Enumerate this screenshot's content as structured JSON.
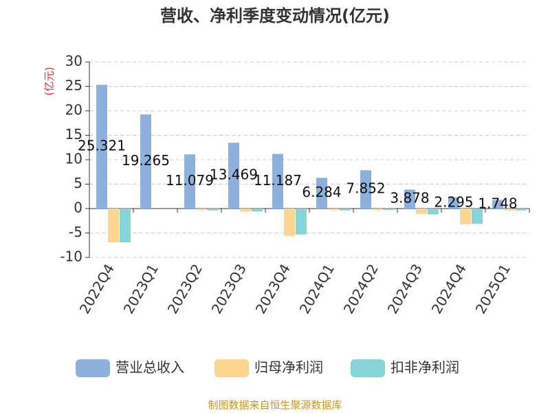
{
  "chart_data": {
    "type": "bar",
    "title": "营收、净利季度变动情况(亿元)",
    "y_label": "(亿元)",
    "categories": [
      "2022Q4",
      "2023Q1",
      "2023Q2",
      "2023Q3",
      "2023Q4",
      "2024Q1",
      "2024Q2",
      "2024Q3",
      "2024Q4",
      "2025Q1"
    ],
    "series": [
      {
        "name": "营业总收入",
        "color": "#8eb0dd",
        "values": [
          25.321,
          19.265,
          11.079,
          13.469,
          11.187,
          6.284,
          7.852,
          3.878,
          2.295,
          1.748
        ],
        "show_labels": true
      },
      {
        "name": "归母净利润",
        "color": "#fdd58f",
        "values": [
          -6.9,
          0,
          -0.3,
          -0.6,
          -5.6,
          -0.3,
          -0.3,
          -1.1,
          -3.2,
          -0.4
        ],
        "show_labels": false
      },
      {
        "name": "扣非净利润",
        "color": "#86d4d7",
        "values": [
          -6.9,
          0,
          -0.4,
          -0.6,
          -5.3,
          -0.4,
          -0.3,
          -1.2,
          -3.1,
          -0.4
        ],
        "show_labels": false
      }
    ],
    "ylim": [
      -10,
      30
    ],
    "yticks": [
      -10,
      -5,
      0,
      5,
      10,
      15,
      20,
      25,
      30
    ],
    "grid": true,
    "source": "制图数据来自恒生聚源数据库"
  }
}
